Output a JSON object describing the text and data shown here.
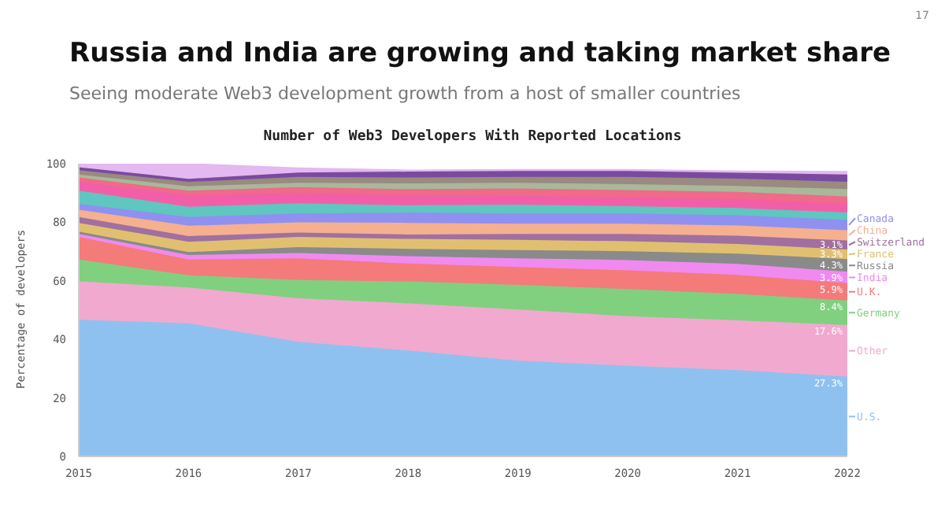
{
  "chart_data": {
    "type": "area",
    "stacked": true,
    "title": "Russia and India are growing and taking market share",
    "subtitle": "Seeing moderate Web3 development growth from a host of smaller countries",
    "annotations": [
      "17",
      "Number of Web3 Developers With Reported Locations"
    ],
    "ylabel": "Percentage of developers",
    "x": [
      2015,
      2016,
      2017,
      2018,
      2019,
      2020,
      2021,
      2022
    ],
    "xlim": [
      2015,
      2022
    ],
    "xticks": [
      2015,
      2016,
      2017,
      2018,
      2019,
      2020,
      2021,
      2022
    ],
    "ylim": [
      0,
      100
    ],
    "yticks": [
      0,
      20,
      40,
      60,
      80,
      100
    ],
    "grid": false,
    "legend": "right",
    "series": [
      {
        "name": "U.S.",
        "color": "#8fc1f0",
        "values": [
          46.7,
          45.5,
          39.2,
          36.2,
          32.7,
          31,
          29.5,
          27.3
        ],
        "value_labels": [
          null,
          null,
          null,
          null,
          null,
          null,
          null,
          "27.3%"
        ]
      },
      {
        "name": "Other",
        "color": "#f2a9cf",
        "values": [
          13.1,
          12.2,
          14.8,
          16.1,
          17.5,
          16.9,
          17,
          17.6
        ],
        "value_labels": [
          null,
          null,
          null,
          null,
          null,
          null,
          null,
          "17.6%"
        ]
      },
      {
        "name": "Germany",
        "color": "#80d080",
        "values": [
          7.5,
          4.2,
          6.3,
          7.5,
          8.4,
          9.3,
          9,
          8.4
        ],
        "value_labels": [
          null,
          null,
          null,
          null,
          null,
          null,
          null,
          "8.4%"
        ]
      },
      {
        "name": "U.K.",
        "color": "#f57a7a",
        "values": [
          7.7,
          5.4,
          7.4,
          6.1,
          6.1,
          6.4,
          6.5,
          5.9
        ],
        "value_labels": [
          null,
          null,
          null,
          null,
          null,
          null,
          null,
          "5.9%"
        ]
      },
      {
        "name": "India",
        "color": "#f08af0",
        "values": [
          1,
          1.5,
          1.8,
          2.5,
          3,
          3.5,
          3.8,
          3.9
        ],
        "value_labels": [
          null,
          null,
          null,
          null,
          null,
          null,
          null,
          "3.9%"
        ]
      },
      {
        "name": "Russia",
        "color": "#8a8a8a",
        "values": [
          0.8,
          1,
          2,
          2.5,
          2.8,
          3,
          3.5,
          4.3
        ],
        "value_labels": [
          null,
          null,
          null,
          null,
          null,
          null,
          null,
          "4.3%"
        ]
      },
      {
        "name": "France",
        "color": "#e0c070",
        "values": [
          3,
          3.5,
          3.5,
          3.4,
          3.5,
          3.4,
          3.3,
          3.3
        ],
        "value_labels": [
          null,
          null,
          null,
          null,
          null,
          null,
          null,
          "3.3%"
        ]
      },
      {
        "name": "Switzerland",
        "color": "#a070a0",
        "values": [
          2,
          2,
          1.5,
          1.5,
          2,
          2.5,
          2.8,
          3.1
        ],
        "value_labels": [
          null,
          null,
          null,
          null,
          null,
          null,
          null,
          "3.1%"
        ]
      },
      {
        "name": "China",
        "color": "#f5b090",
        "values": [
          2.5,
          3.5,
          3.5,
          4,
          3.5,
          3.5,
          3.5,
          3.5
        ]
      },
      {
        "name": "Canada",
        "color": "#9090f0",
        "values": [
          2,
          3,
          3,
          3.5,
          3.5,
          3.5,
          3.5,
          3.5
        ]
      },
      {
        "color": "#5fc6c0",
        "values": [
          4.5,
          3.5,
          3.5,
          2.5,
          3,
          2.5,
          2.5,
          2.5
        ]
      },
      {
        "color": "#f25fa8",
        "values": [
          3,
          4,
          3.5,
          3.5,
          3,
          3,
          3,
          3
        ]
      },
      {
        "color": "#f06a8a",
        "values": [
          1.5,
          1.5,
          2,
          2,
          2.5,
          2.5,
          2.5,
          2.5
        ]
      },
      {
        "color": "#a8b89a",
        "values": [
          1,
          1.5,
          1.5,
          2,
          2,
          2,
          2,
          2.5
        ]
      },
      {
        "color": "#9a8a80",
        "values": [
          1.5,
          1.5,
          2,
          2,
          2,
          2.5,
          2.5,
          2.5
        ]
      },
      {
        "color": "#7a4aa0",
        "values": [
          1,
          1,
          1.5,
          2,
          2,
          2,
          2,
          2.5
        ]
      },
      {
        "color": "#e4b8f0",
        "values": [
          1.2,
          5.2,
          1.5,
          0.5,
          0.5,
          0.5,
          0.5,
          1
        ]
      }
    ]
  }
}
